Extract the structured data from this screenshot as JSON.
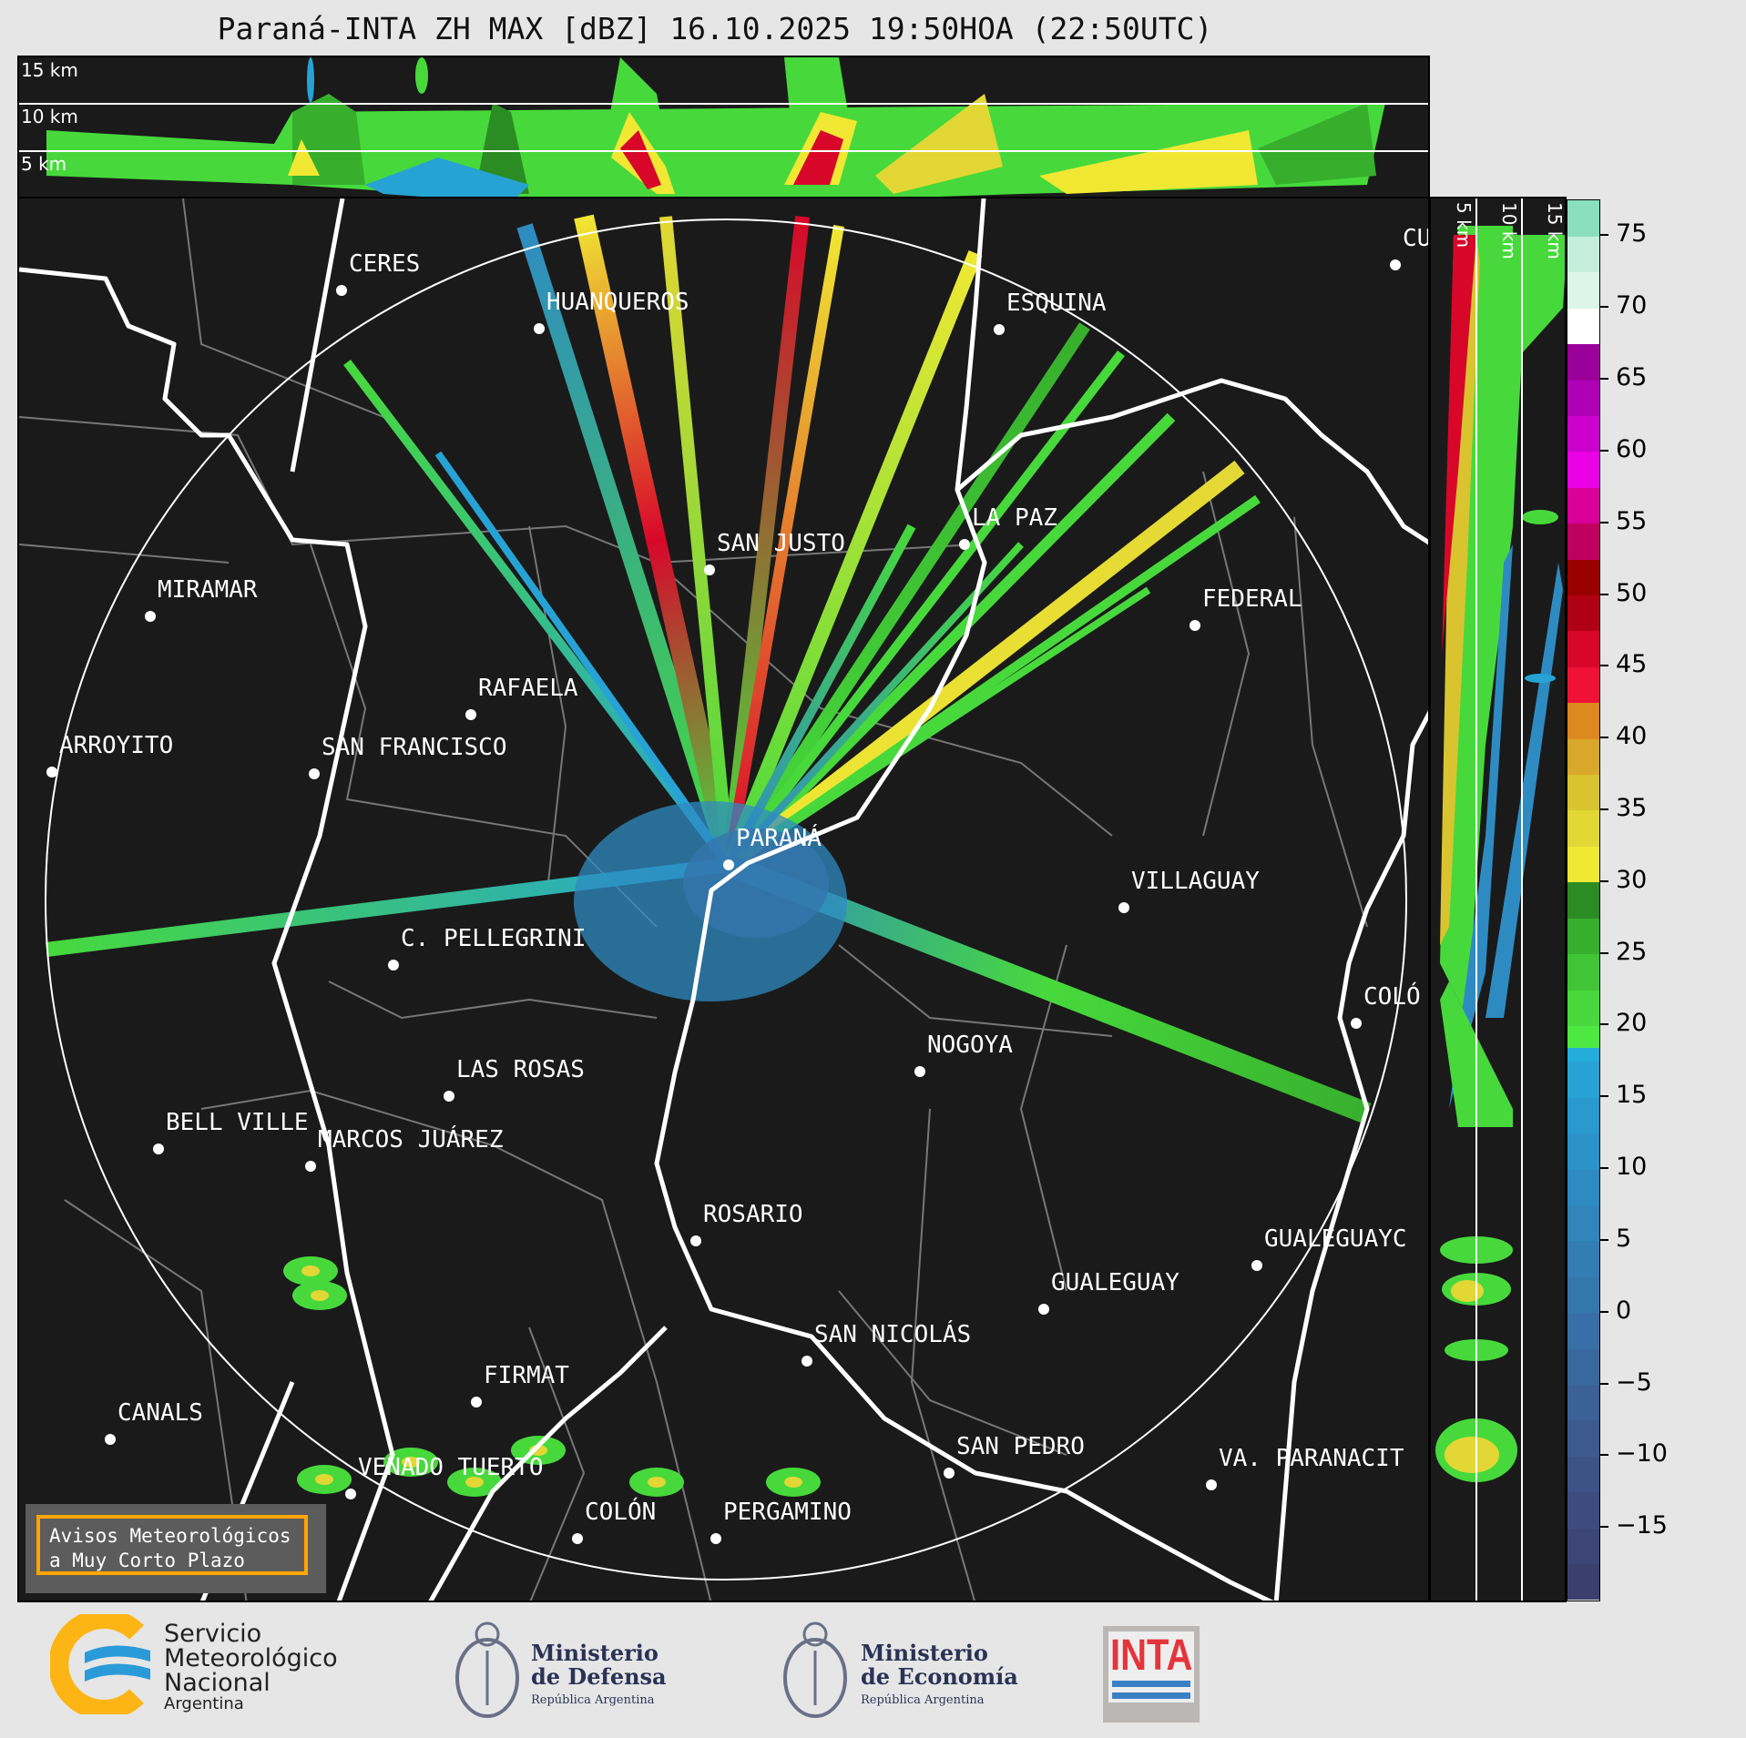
{
  "title": "Paraná-INTA ZH MAX [dBZ] 16.10.2025 19:50HOA (22:50UTC)",
  "top_panel": {
    "altitudes": [
      "15 km",
      "10 km",
      "5 km"
    ]
  },
  "side_panel": {
    "altitudes": [
      "5 km",
      "10 km",
      "15 km"
    ]
  },
  "colorbar": {
    "unit": "dBZ",
    "range": [
      -20,
      77.5
    ],
    "ticks": [
      "75",
      "70",
      "65",
      "60",
      "55",
      "50",
      "45",
      "40",
      "35",
      "30",
      "25",
      "20",
      "15",
      "10",
      "5",
      "0",
      "−5",
      "−10",
      "−15"
    ],
    "tick_values": [
      75,
      70,
      65,
      60,
      55,
      50,
      45,
      40,
      35,
      30,
      25,
      20,
      15,
      10,
      5,
      0,
      -5,
      -10,
      -15
    ],
    "levels": [
      {
        "from": -20,
        "color": "#3b3f6e"
      },
      {
        "from": -17.5,
        "color": "#3c4676"
      },
      {
        "from": -15,
        "color": "#3d4c7e"
      },
      {
        "from": -12.5,
        "color": "#3d5386"
      },
      {
        "from": -10,
        "color": "#3c5a8e"
      },
      {
        "from": -7.5,
        "color": "#3b6196"
      },
      {
        "from": -5,
        "color": "#39689e"
      },
      {
        "from": -2.5,
        "color": "#376fa6"
      },
      {
        "from": 0,
        "color": "#3576ad"
      },
      {
        "from": 2.5,
        "color": "#337db5"
      },
      {
        "from": 5,
        "color": "#3184bc"
      },
      {
        "from": 7.5,
        "color": "#2e8bc2"
      },
      {
        "from": 10,
        "color": "#2b93c8"
      },
      {
        "from": 12.5,
        "color": "#289ace"
      },
      {
        "from": 15,
        "color": "#26a3d4"
      },
      {
        "from": 17.5,
        "color": "#24acda"
      },
      {
        "from": 18.5,
        "color": "#4ee843"
      },
      {
        "from": 20,
        "color": "#47d93c"
      },
      {
        "from": 22.5,
        "color": "#3fc535"
      },
      {
        "from": 25,
        "color": "#37af2d"
      },
      {
        "from": 27.5,
        "color": "#2c8c24"
      },
      {
        "from": 30,
        "color": "#f0e833"
      },
      {
        "from": 32.5,
        "color": "#e3d735"
      },
      {
        "from": 35,
        "color": "#d9c430"
      },
      {
        "from": 37.5,
        "color": "#d9a82a"
      },
      {
        "from": 40,
        "color": "#dc8a20"
      },
      {
        "from": 42.5,
        "color": "#ef1236"
      },
      {
        "from": 45,
        "color": "#d8072a"
      },
      {
        "from": 47.5,
        "color": "#b00014"
      },
      {
        "from": 50,
        "color": "#990000"
      },
      {
        "from": 52.5,
        "color": "#c0005f"
      },
      {
        "from": 55,
        "color": "#d9009a"
      },
      {
        "from": 57.5,
        "color": "#ea00e6"
      },
      {
        "from": 60,
        "color": "#cc00cc"
      },
      {
        "from": 62.5,
        "color": "#b000b5"
      },
      {
        "from": 65,
        "color": "#9a0099"
      },
      {
        "from": 67.5,
        "color": "#ffffff"
      },
      {
        "from": 70,
        "color": "#dcf5ea"
      },
      {
        "from": 72.5,
        "color": "#c5efdc"
      },
      {
        "from": 75,
        "color": "#8adfc0"
      }
    ]
  },
  "cities": [
    "CERES",
    "HUANQUEROS",
    "ESQUINA",
    "CU",
    "SAN JUSTO",
    "LA PAZ",
    "MIRAMAR",
    "FEDERAL",
    "RAFAELA",
    "ARROYITO",
    "SAN FRANCISCO",
    "PARANÁ",
    "VILLAGUAY",
    "C. PELLEGRINI",
    "COLÓ",
    "NOGOYA",
    "LAS ROSAS",
    "BELL VILLE",
    "MARCOS JUÁREZ",
    "ROSARIO",
    "GUALEGUAYC",
    "GUALEGUAY",
    "SAN NICOLÁS",
    "FIRMAT",
    "CANALS",
    "SAN PEDRO",
    "VA. PARANACIT",
    "VENADO TUERTO",
    "COLÓN",
    "PERGAMINO"
  ],
  "avisos": {
    "line1": "Avisos Meteorológicos",
    "line2": "a Muy Corto Plazo"
  },
  "logos": {
    "smn": {
      "line1": "Servicio",
      "line2": "Meteorológico",
      "line3": "Nacional",
      "line4": "Argentina"
    },
    "defensa": {
      "line1": "Ministerio",
      "line2": "de Defensa",
      "line3": "República Argentina"
    },
    "economia": {
      "line1": "Ministerio",
      "line2": "de Economía",
      "line3": "República Argentina"
    },
    "inta": "INTA"
  },
  "colors": {
    "background": "#1a1a1a",
    "page": "#e6e6e6",
    "avisos_border": "#ffa500",
    "inta_red": "#e5343a",
    "inta_blue": "#3a80c4"
  }
}
